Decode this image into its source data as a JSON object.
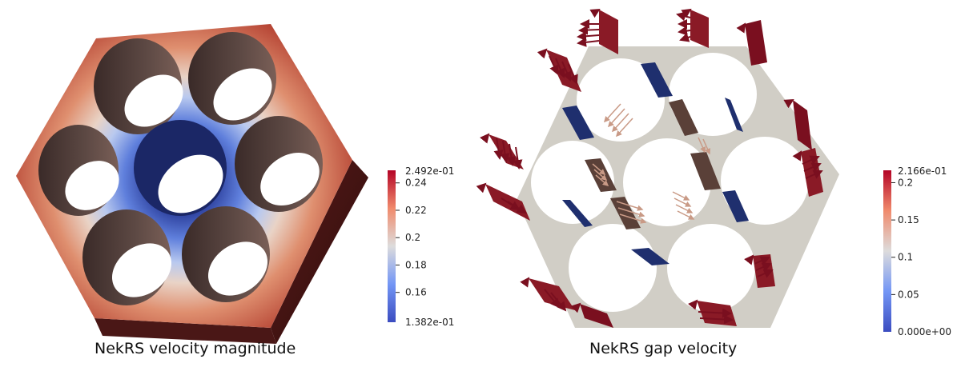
{
  "left_panel": {
    "caption": "NekRS velocity magnitude",
    "colorbar": {
      "max_label": "2.492e-01",
      "min_label": "1.382e-01",
      "ticks": [
        "0.24",
        "0.22",
        "0.2",
        "0.18",
        "0.16"
      ],
      "tick_values": [
        0.24,
        0.22,
        0.2,
        0.18,
        0.16
      ],
      "range": [
        0.1382,
        0.2492
      ]
    }
  },
  "right_panel": {
    "caption": "NekRS gap velocity",
    "colorbar": {
      "max_label": "2.166e-01",
      "min_label": "0.000e+00",
      "ticks": [
        "0.2",
        "0.15",
        "0.1",
        "0.05"
      ],
      "tick_values": [
        0.2,
        0.15,
        0.1,
        0.05
      ],
      "range": [
        0.0,
        0.2166
      ]
    }
  },
  "colors": {
    "high": "#b40426",
    "mid": "#dddcdc",
    "low": "#3b4cc0",
    "duct_face": "#d1cec6",
    "arrow_dark": "#7a0f1f",
    "arrow_light": "#c99a86"
  }
}
